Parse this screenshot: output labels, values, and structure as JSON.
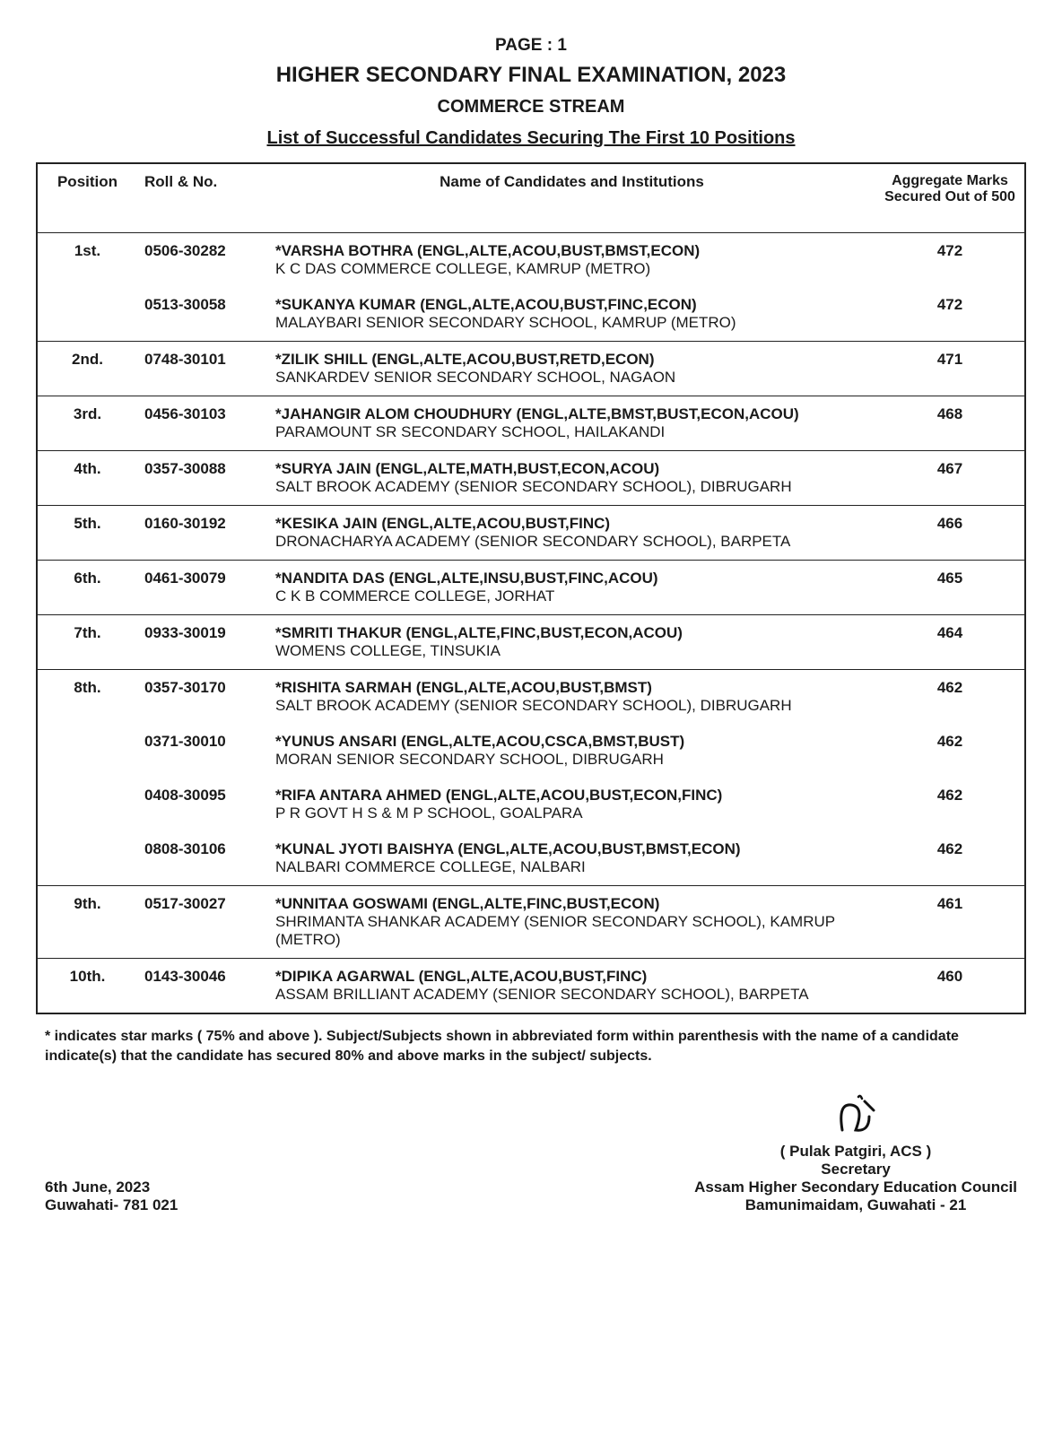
{
  "header": {
    "page_no": "PAGE : 1",
    "main_title": "HIGHER SECONDARY FINAL EXAMINATION, 2023",
    "stream": "COMMERCE STREAM",
    "list_title": "List of Successful Candidates Securing The First 10 Positions"
  },
  "columns": {
    "position": "Position",
    "roll": "Roll & No.",
    "name": "Name of Candidates and Institutions",
    "marks": "Aggregate Marks Secured Out of 500"
  },
  "groups": [
    {
      "position": "1st.",
      "rows": [
        {
          "roll": "0506-30282",
          "name": "*VARSHA BOTHRA (ENGL,ALTE,ACOU,BUST,BMST,ECON)",
          "inst": "K C DAS COMMERCE COLLEGE, KAMRUP (METRO)",
          "marks": "472"
        },
        {
          "roll": "0513-30058",
          "name": "*SUKANYA KUMAR (ENGL,ALTE,ACOU,BUST,FINC,ECON)",
          "inst": "MALAYBARI SENIOR SECONDARY SCHOOL, KAMRUP (METRO)",
          "marks": "472"
        }
      ]
    },
    {
      "position": "2nd.",
      "rows": [
        {
          "roll": "0748-30101",
          "name": "*ZILIK SHILL (ENGL,ALTE,ACOU,BUST,RETD,ECON)",
          "inst": "SANKARDEV SENIOR SECONDARY SCHOOL, NAGAON",
          "marks": "471"
        }
      ]
    },
    {
      "position": "3rd.",
      "rows": [
        {
          "roll": "0456-30103",
          "name": "*JAHANGIR ALOM CHOUDHURY (ENGL,ALTE,BMST,BUST,ECON,ACOU)",
          "inst": "PARAMOUNT SR SECONDARY SCHOOL, HAILAKANDI",
          "marks": "468"
        }
      ]
    },
    {
      "position": "4th.",
      "rows": [
        {
          "roll": "0357-30088",
          "name": "*SURYA JAIN (ENGL,ALTE,MATH,BUST,ECON,ACOU)",
          "inst": "SALT BROOK ACADEMY (SENIOR SECONDARY SCHOOL), DIBRUGARH",
          "marks": "467"
        }
      ]
    },
    {
      "position": "5th.",
      "rows": [
        {
          "roll": "0160-30192",
          "name": "*KESIKA JAIN (ENGL,ALTE,ACOU,BUST,FINC)",
          "inst": "DRONACHARYA ACADEMY (SENIOR SECONDARY SCHOOL), BARPETA",
          "marks": "466"
        }
      ]
    },
    {
      "position": "6th.",
      "rows": [
        {
          "roll": "0461-30079",
          "name": "*NANDITA DAS (ENGL,ALTE,INSU,BUST,FINC,ACOU)",
          "inst": "C K B COMMERCE COLLEGE, JORHAT",
          "marks": "465"
        }
      ]
    },
    {
      "position": "7th.",
      "rows": [
        {
          "roll": "0933-30019",
          "name": "*SMRITI THAKUR (ENGL,ALTE,FINC,BUST,ECON,ACOU)",
          "inst": "WOMENS COLLEGE, TINSUKIA",
          "marks": "464"
        }
      ]
    },
    {
      "position": "8th.",
      "rows": [
        {
          "roll": "0357-30170",
          "name": "*RISHITA SARMAH (ENGL,ALTE,ACOU,BUST,BMST)",
          "inst": "SALT BROOK ACADEMY (SENIOR SECONDARY SCHOOL), DIBRUGARH",
          "marks": "462"
        },
        {
          "roll": "0371-30010",
          "name": "*YUNUS ANSARI (ENGL,ALTE,ACOU,CSCA,BMST,BUST)",
          "inst": "MORAN SENIOR SECONDARY SCHOOL, DIBRUGARH",
          "marks": "462"
        },
        {
          "roll": "0408-30095",
          "name": "*RIFA ANTARA AHMED (ENGL,ALTE,ACOU,BUST,ECON,FINC)",
          "inst": "P R GOVT H S & M P SCHOOL, GOALPARA",
          "marks": "462"
        },
        {
          "roll": "0808-30106",
          "name": "*KUNAL JYOTI BAISHYA (ENGL,ALTE,ACOU,BUST,BMST,ECON)",
          "inst": "NALBARI COMMERCE COLLEGE, NALBARI",
          "marks": "462"
        }
      ]
    },
    {
      "position": "9th.",
      "rows": [
        {
          "roll": "0517-30027",
          "name": "*UNNITAA GOSWAMI (ENGL,ALTE,FINC,BUST,ECON)",
          "inst": "SHRIMANTA SHANKAR ACADEMY (SENIOR SECONDARY SCHOOL), KAMRUP (METRO)",
          "marks": "461"
        }
      ]
    },
    {
      "position": "10th.",
      "rows": [
        {
          "roll": "0143-30046",
          "name": "*DIPIKA AGARWAL (ENGL,ALTE,ACOU,BUST,FINC)",
          "inst": "ASSAM BRILLIANT ACADEMY (SENIOR SECONDARY SCHOOL), BARPETA",
          "marks": "460"
        }
      ]
    }
  ],
  "footnote": "* indicates star marks ( 75% and above ). Subject/Subjects shown in abbreviated form within parenthesis with the name of a candidate indicate(s) that the candidate has secured 80% and above marks in the subject/ subjects.",
  "footer": {
    "date": "6th June, 2023",
    "place": "Guwahati- 781 021",
    "signatory_name": "( Pulak Patgiri, ACS )",
    "signatory_title": "Secretary",
    "council": "Assam Higher Secondary Education Council",
    "council_addr": "Bamunimaidam, Guwahati - 21"
  }
}
